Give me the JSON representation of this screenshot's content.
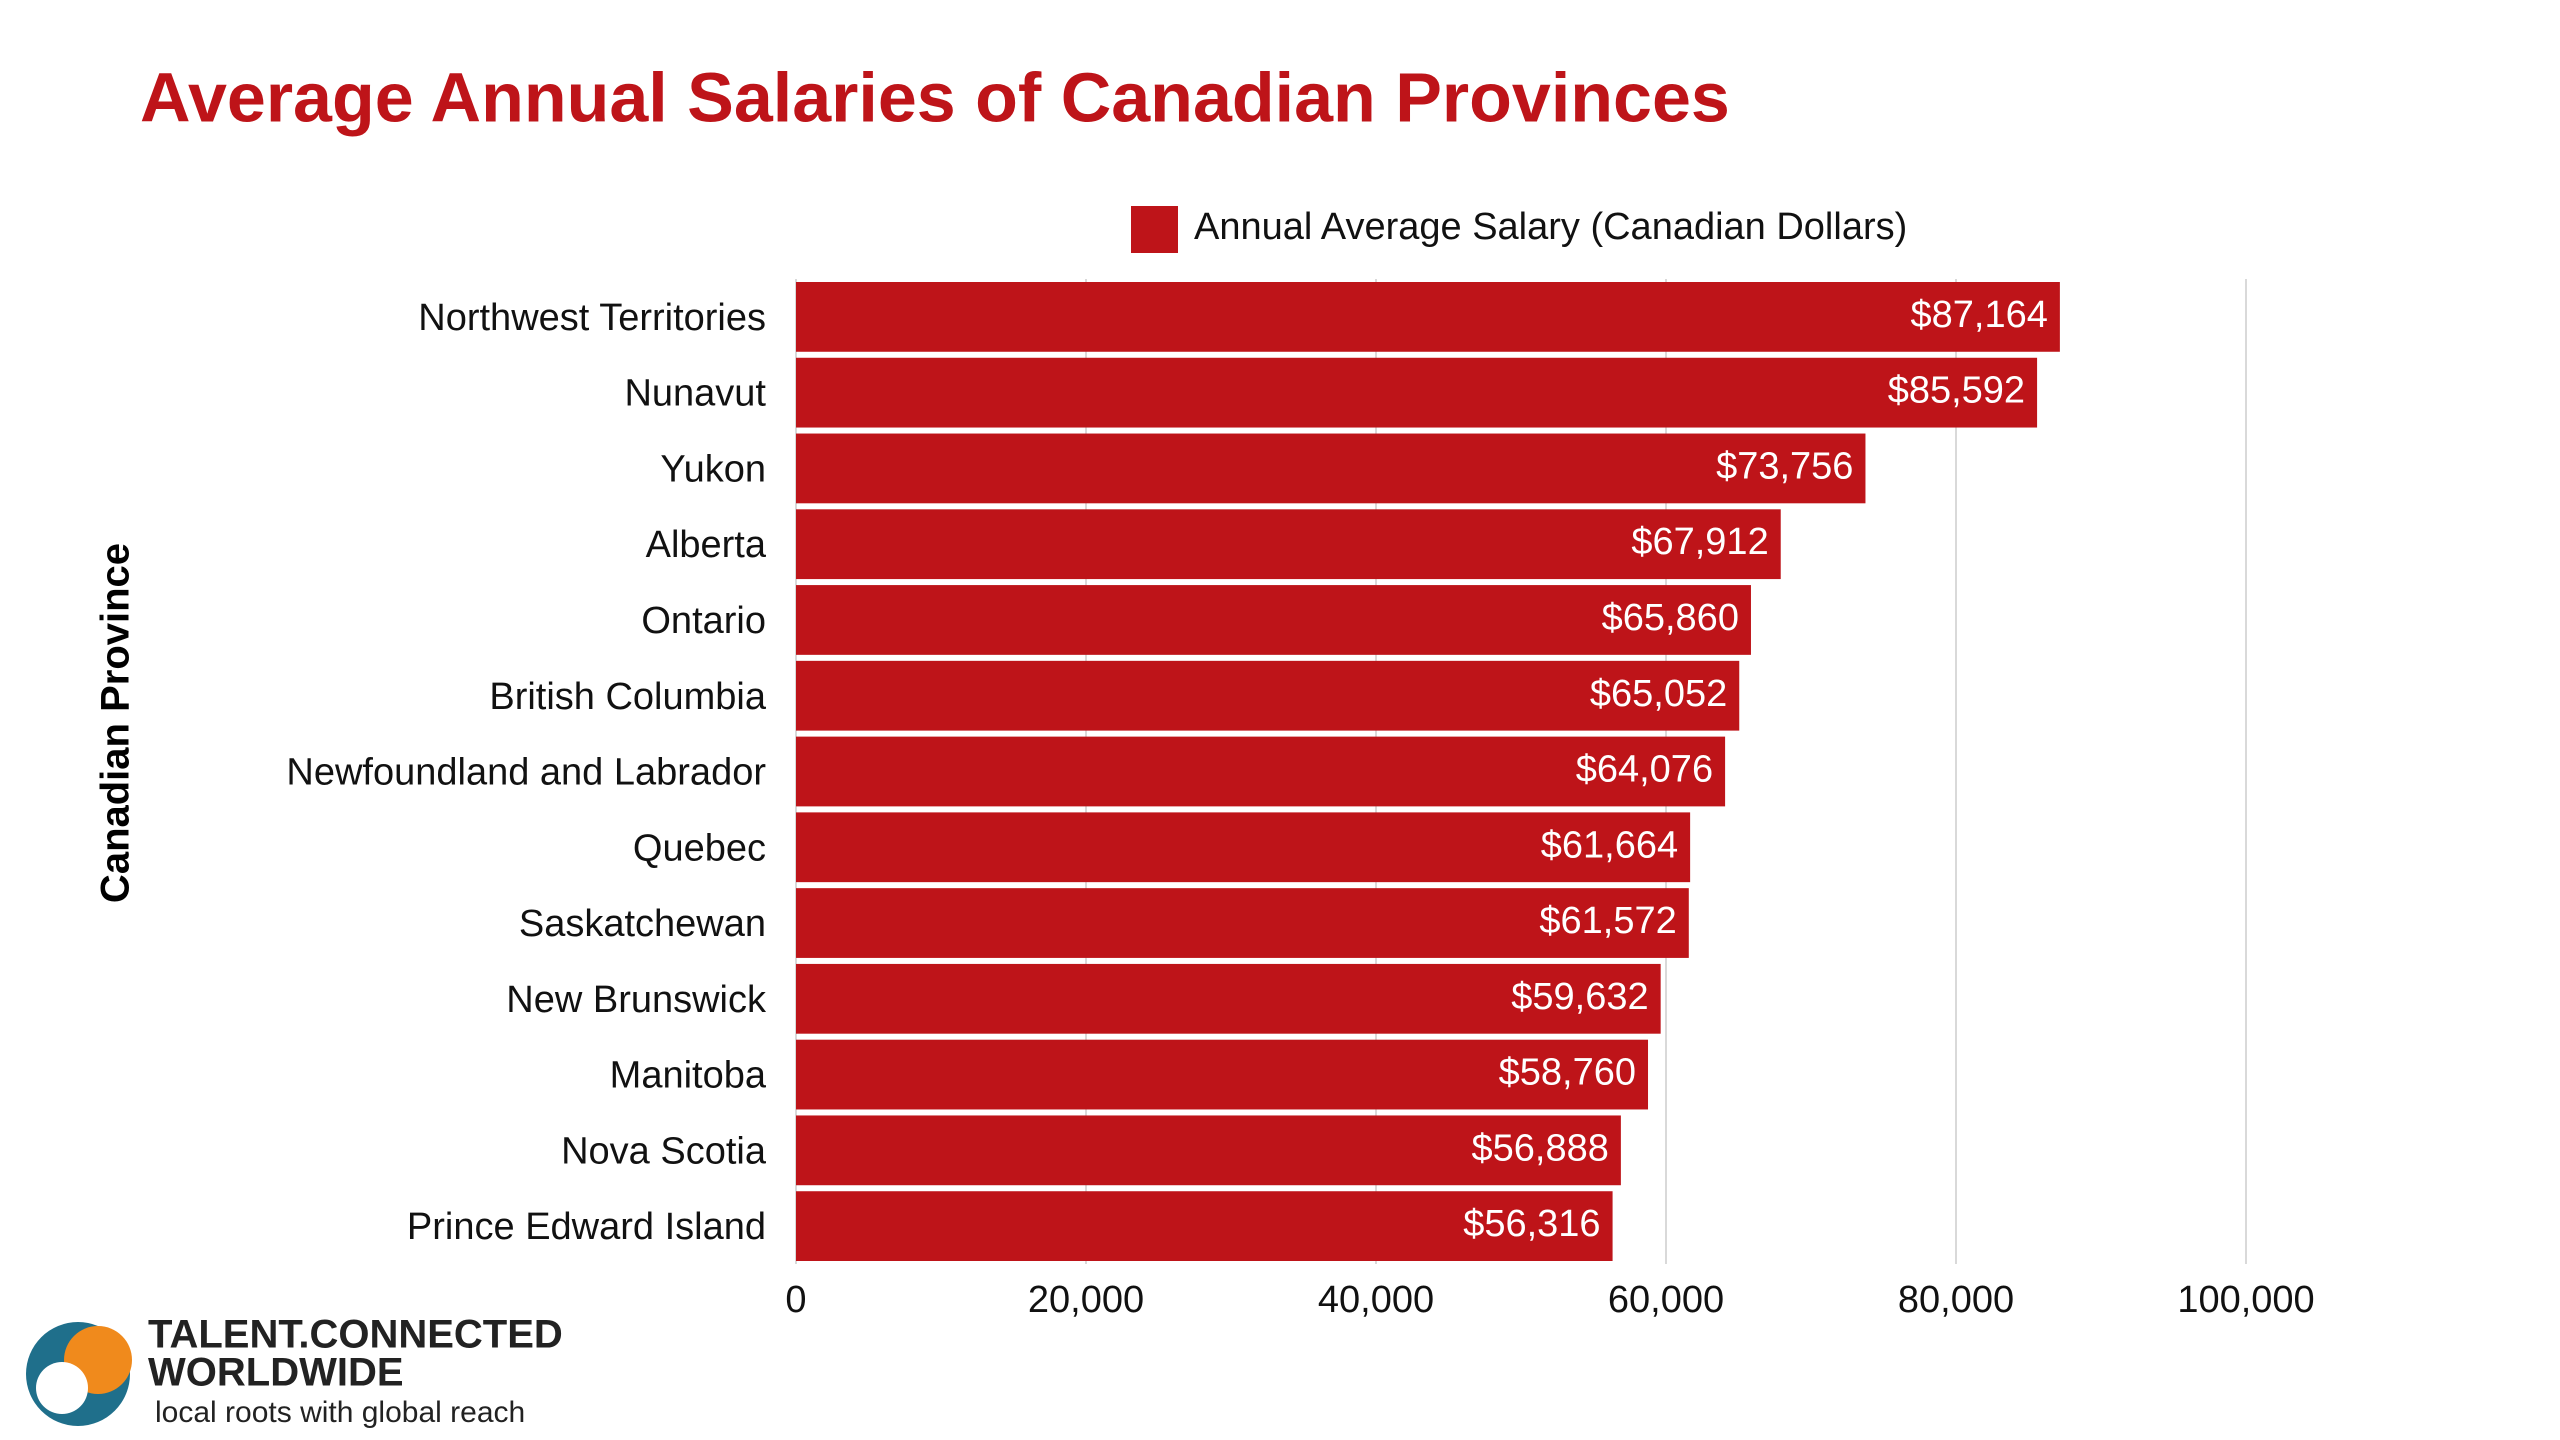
{
  "chart_data": {
    "type": "bar",
    "orientation": "horizontal",
    "title": "Average Annual Salaries of Canadian Provinces",
    "y_label": "Canadian Province",
    "categories": [
      "Northwest Territories",
      "Nunavut",
      "Yukon",
      "Alberta",
      "Ontario",
      "British Columbia",
      "Newfoundland and Labrador",
      "Quebec",
      "Saskatchewan",
      "New Brunswick",
      "Manitoba",
      "Nova Scotia",
      "Prince Edward Island"
    ],
    "series": [
      {
        "name": "Annual Average Salary (Canadian Dollars)",
        "color": "#be1419",
        "values": [
          87164,
          85592,
          73756,
          67912,
          65860,
          65052,
          64076,
          61664,
          61572,
          59632,
          58760,
          56888,
          56316
        ],
        "value_labels": [
          "$87,164",
          "$85,592",
          "$73,756",
          "$67,912",
          "$65,860",
          "$65,052",
          "$64,076",
          "$61,664",
          "$61,572",
          "$59,632",
          "$58,760",
          "$56,888",
          "$56,316"
        ]
      }
    ],
    "xlim": [
      0,
      100000
    ],
    "xticks": [
      0,
      {
        "value": 20000,
        "label": "20,000"
      },
      {
        "value": 40000,
        "label": "40,000"
      },
      {
        "value": 60000,
        "label": "60,000"
      },
      {
        "value": 80000,
        "label": "80,000"
      },
      {
        "value": 100000,
        "label": "100,000"
      }
    ],
    "grid": true,
    "legend": "top"
  },
  "logo": {
    "line1": "TALENT.CONNECTED",
    "line2": "WORLDWIDE",
    "tagline": "local roots with global reach"
  }
}
